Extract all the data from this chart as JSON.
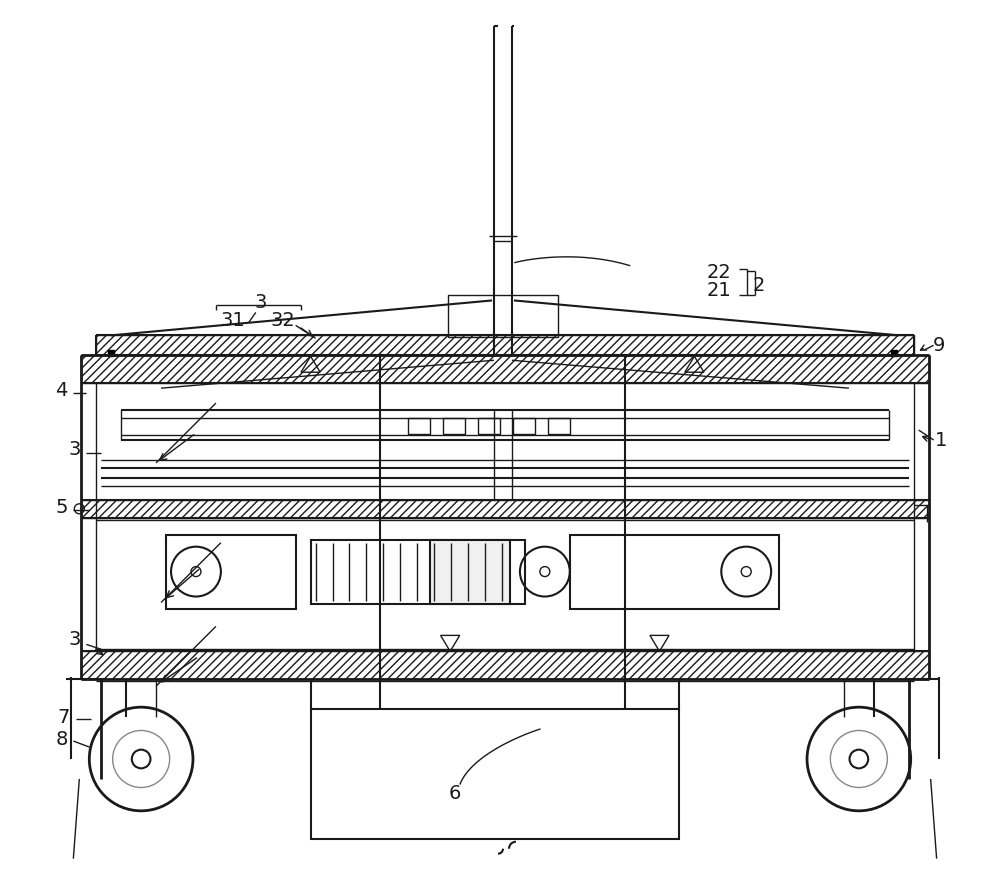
{
  "bg_color": "#ffffff",
  "line_color": "#1a1a1a",
  "lw_thin": 1.0,
  "lw_med": 1.5,
  "lw_thick": 2.0,
  "fig_width": 10.0,
  "fig_height": 8.83
}
